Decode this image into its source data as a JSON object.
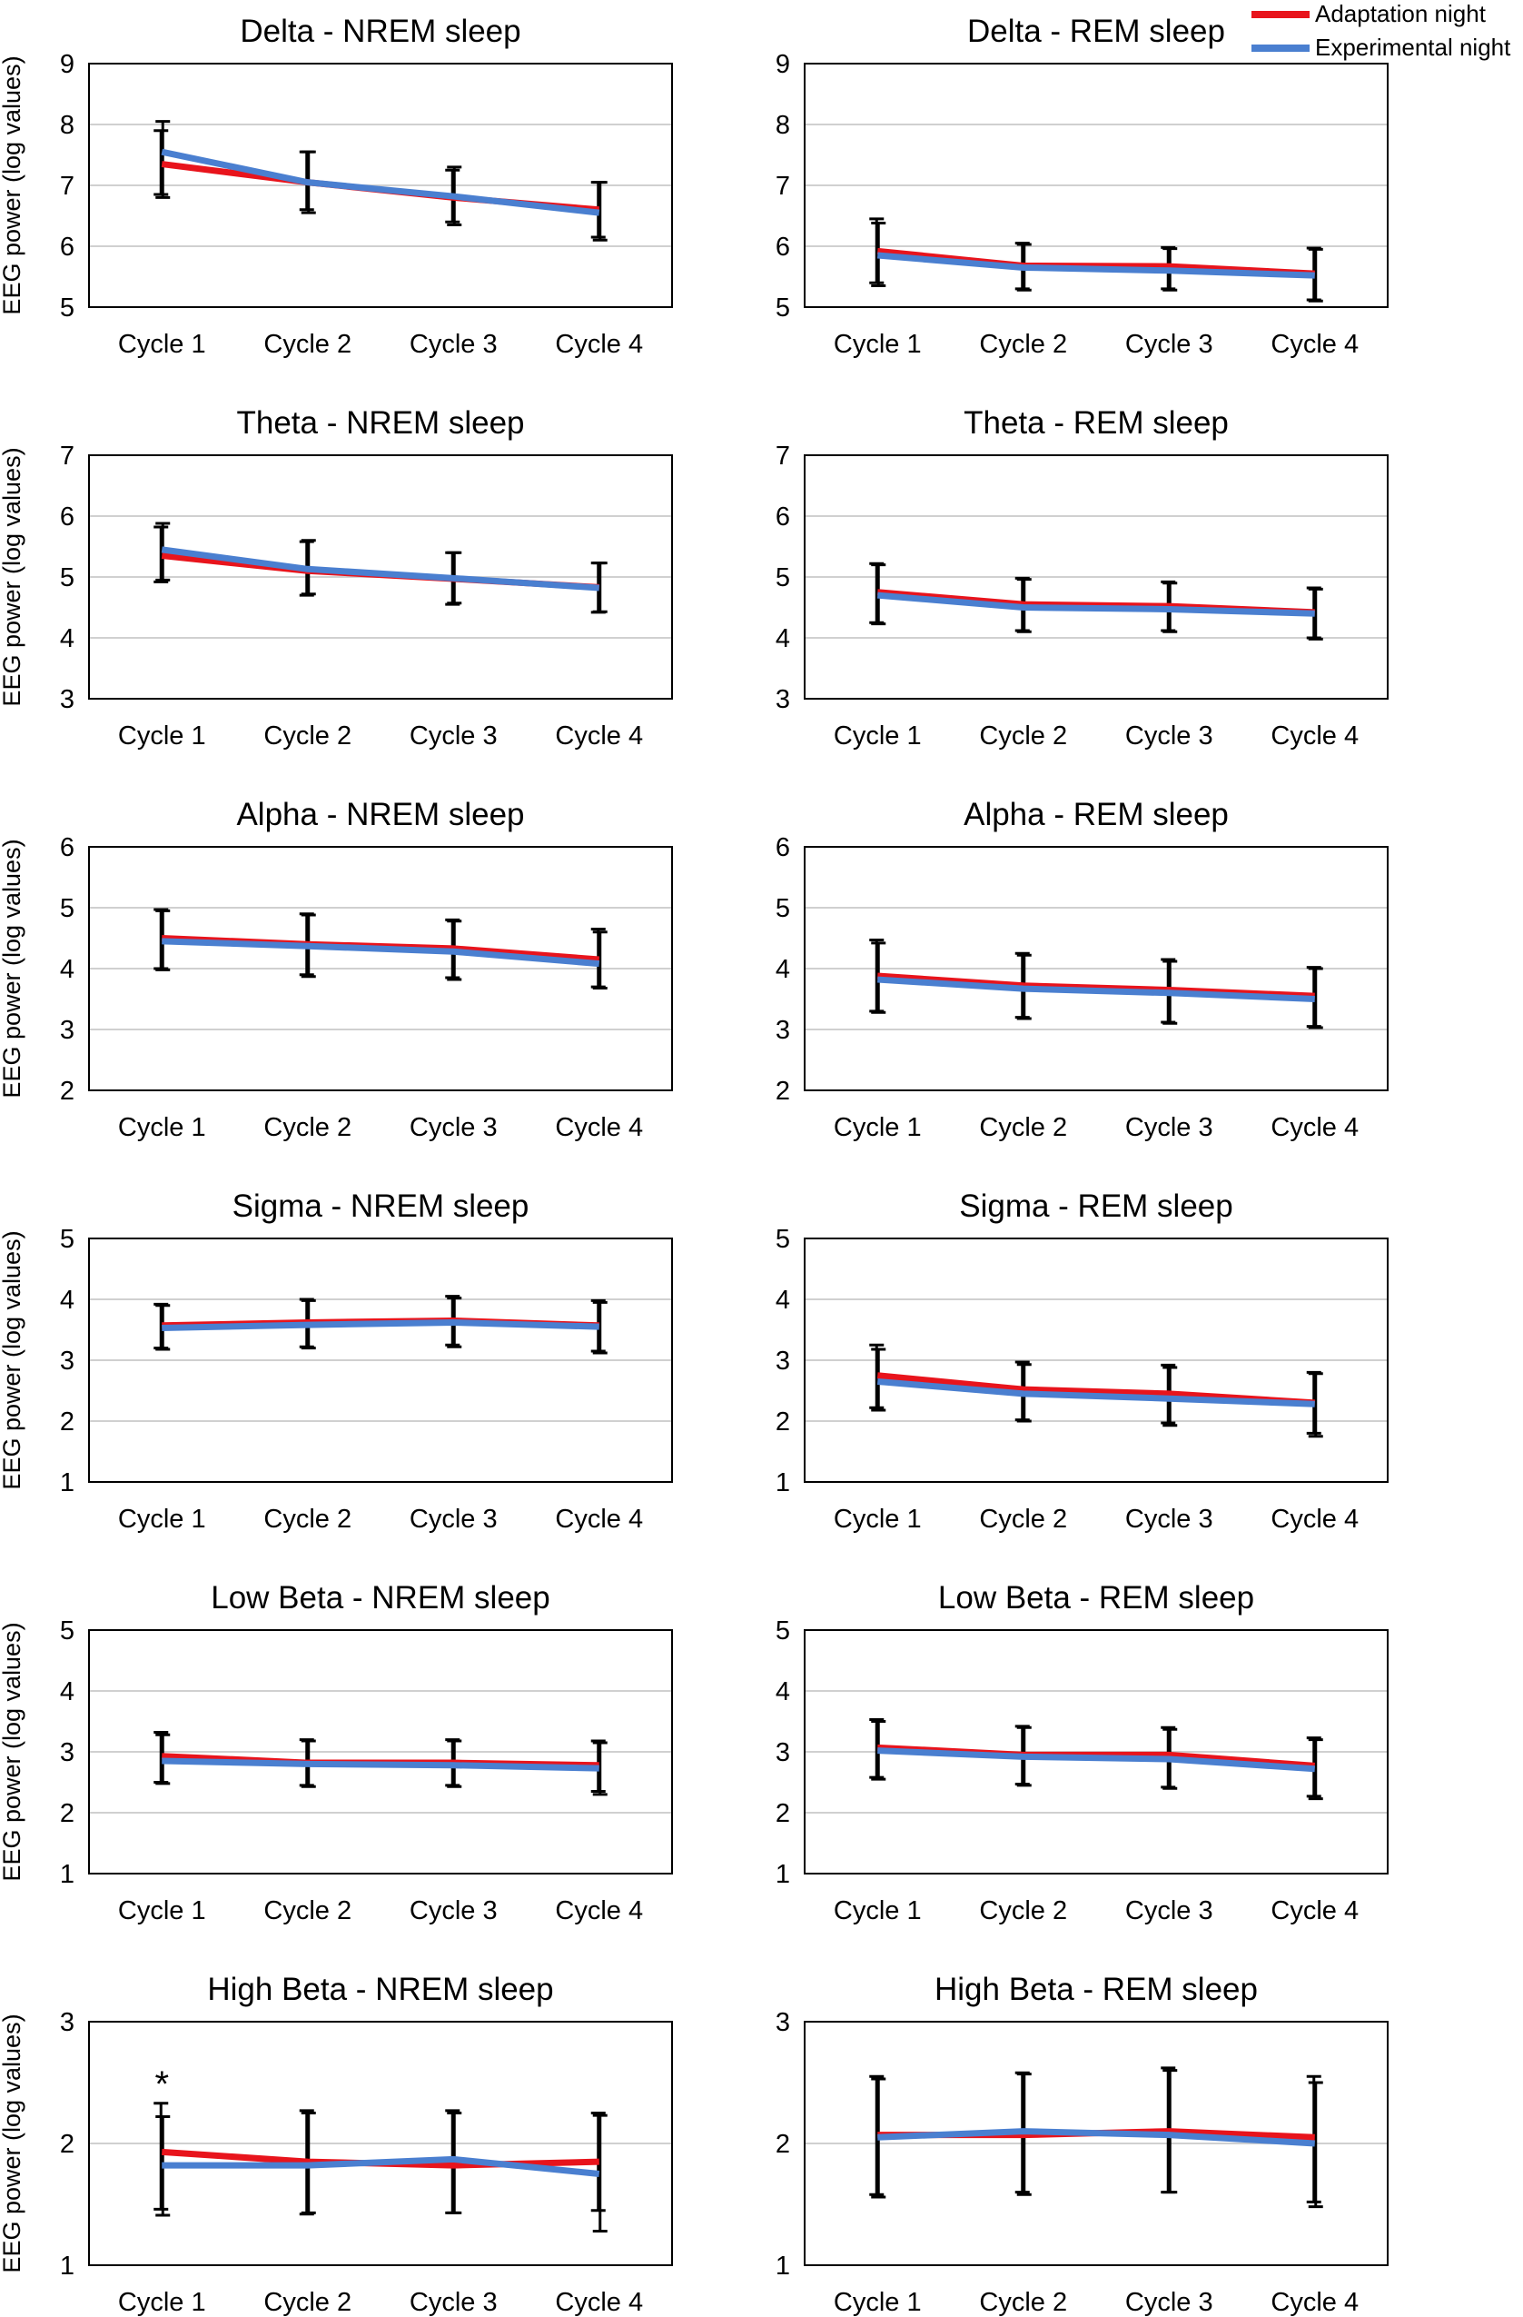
{
  "legend": [
    {
      "label": "Adaptation night",
      "color": "#e8141c"
    },
    {
      "label": "Experimental night",
      "color": "#4a7fd0"
    }
  ],
  "ylabel": "EEG power (log values)",
  "categories": [
    "Cycle 1",
    "Cycle 2",
    "Cycle 3",
    "Cycle 4"
  ],
  "chart_data": [
    {
      "type": "line",
      "title": "Delta - NREM sleep",
      "ylim": [
        5,
        9
      ],
      "yticks": [
        5,
        6,
        7,
        8,
        9
      ],
      "categories": [
        "Cycle 1",
        "Cycle 2",
        "Cycle 3",
        "Cycle 4"
      ],
      "series": [
        {
          "name": "Adaptation night",
          "values": [
            7.35,
            7.05,
            6.8,
            6.6
          ],
          "err_low": [
            6.85,
            6.6,
            6.4,
            6.15
          ],
          "err_high": [
            7.9,
            7.55,
            7.25,
            7.05
          ]
        },
        {
          "name": "Experimental night",
          "values": [
            7.55,
            7.05,
            6.82,
            6.55
          ],
          "err_low": [
            6.8,
            6.55,
            6.35,
            6.1
          ],
          "err_high": [
            8.05,
            7.55,
            7.3,
            7.05
          ]
        }
      ]
    },
    {
      "type": "line",
      "title": "Delta - REM sleep",
      "ylim": [
        5,
        9
      ],
      "yticks": [
        5,
        6,
        7,
        8,
        9
      ],
      "categories": [
        "Cycle 1",
        "Cycle 2",
        "Cycle 3",
        "Cycle 4"
      ],
      "series": [
        {
          "name": "Adaptation night",
          "values": [
            5.92,
            5.68,
            5.67,
            5.55
          ],
          "err_low": [
            5.4,
            5.3,
            5.3,
            5.12
          ],
          "err_high": [
            6.45,
            6.05,
            5.98,
            5.97
          ]
        },
        {
          "name": "Experimental night",
          "values": [
            5.85,
            5.65,
            5.6,
            5.52
          ],
          "err_low": [
            5.35,
            5.28,
            5.28,
            5.1
          ],
          "err_high": [
            6.38,
            6.03,
            5.96,
            5.95
          ]
        }
      ]
    },
    {
      "type": "line",
      "title": "Theta - NREM sleep",
      "ylim": [
        3,
        7
      ],
      "yticks": [
        3,
        4,
        5,
        6,
        7
      ],
      "categories": [
        "Cycle 1",
        "Cycle 2",
        "Cycle 3",
        "Cycle 4"
      ],
      "series": [
        {
          "name": "Adaptation night",
          "values": [
            5.35,
            5.1,
            4.97,
            4.83
          ],
          "err_low": [
            4.92,
            4.7,
            4.55,
            4.42
          ],
          "err_high": [
            5.82,
            5.58,
            5.4,
            5.23
          ]
        },
        {
          "name": "Experimental night",
          "values": [
            5.45,
            5.13,
            4.98,
            4.82
          ],
          "err_low": [
            4.95,
            4.72,
            4.57,
            4.43
          ],
          "err_high": [
            5.88,
            5.6,
            5.4,
            5.23
          ]
        }
      ]
    },
    {
      "type": "line",
      "title": "Theta - REM sleep",
      "ylim": [
        3,
        7
      ],
      "yticks": [
        3,
        4,
        5,
        6,
        7
      ],
      "categories": [
        "Cycle 1",
        "Cycle 2",
        "Cycle 3",
        "Cycle 4"
      ],
      "series": [
        {
          "name": "Adaptation night",
          "values": [
            4.75,
            4.55,
            4.52,
            4.42
          ],
          "err_low": [
            4.25,
            4.12,
            4.12,
            4.0
          ],
          "err_high": [
            5.22,
            4.98,
            4.92,
            4.82
          ]
        },
        {
          "name": "Experimental night",
          "values": [
            4.7,
            4.5,
            4.47,
            4.4
          ],
          "err_low": [
            4.23,
            4.1,
            4.1,
            3.98
          ],
          "err_high": [
            5.2,
            4.96,
            4.9,
            4.8
          ]
        }
      ]
    },
    {
      "type": "line",
      "title": "Alpha - NREM sleep",
      "ylim": [
        2,
        6
      ],
      "yticks": [
        2,
        3,
        4,
        5,
        6
      ],
      "categories": [
        "Cycle 1",
        "Cycle 2",
        "Cycle 3",
        "Cycle 4"
      ],
      "series": [
        {
          "name": "Adaptation night",
          "values": [
            4.5,
            4.4,
            4.33,
            4.15
          ],
          "err_low": [
            4.0,
            3.9,
            3.85,
            3.7
          ],
          "err_high": [
            4.97,
            4.9,
            4.8,
            4.65
          ]
        },
        {
          "name": "Experimental night",
          "values": [
            4.45,
            4.37,
            4.28,
            4.08
          ],
          "err_low": [
            3.98,
            3.87,
            3.82,
            3.68
          ],
          "err_high": [
            4.95,
            4.88,
            4.78,
            4.6
          ]
        }
      ]
    },
    {
      "type": "line",
      "title": "Alpha - REM sleep",
      "ylim": [
        2,
        6
      ],
      "yticks": [
        2,
        3,
        4,
        5,
        6
      ],
      "categories": [
        "Cycle 1",
        "Cycle 2",
        "Cycle 3",
        "Cycle 4"
      ],
      "series": [
        {
          "name": "Adaptation night",
          "values": [
            3.88,
            3.72,
            3.65,
            3.55
          ],
          "err_low": [
            3.3,
            3.2,
            3.12,
            3.05
          ],
          "err_high": [
            4.47,
            4.25,
            4.15,
            4.02
          ]
        },
        {
          "name": "Experimental night",
          "values": [
            3.82,
            3.67,
            3.6,
            3.5
          ],
          "err_low": [
            3.28,
            3.18,
            3.1,
            3.03
          ],
          "err_high": [
            4.42,
            4.22,
            4.12,
            4.0
          ]
        }
      ]
    },
    {
      "type": "line",
      "title": "Sigma - NREM sleep",
      "ylim": [
        1,
        5
      ],
      "yticks": [
        1,
        2,
        3,
        4,
        5
      ],
      "categories": [
        "Cycle 1",
        "Cycle 2",
        "Cycle 3",
        "Cycle 4"
      ],
      "series": [
        {
          "name": "Adaptation night",
          "values": [
            3.57,
            3.62,
            3.65,
            3.57
          ],
          "err_low": [
            3.2,
            3.22,
            3.25,
            3.15
          ],
          "err_high": [
            3.92,
            4.0,
            4.05,
            3.98
          ]
        },
        {
          "name": "Experimental night",
          "values": [
            3.53,
            3.58,
            3.62,
            3.55
          ],
          "err_low": [
            3.18,
            3.2,
            3.22,
            3.12
          ],
          "err_high": [
            3.9,
            3.98,
            4.02,
            3.95
          ]
        }
      ]
    },
    {
      "type": "line",
      "title": "Sigma - REM sleep",
      "ylim": [
        1,
        5
      ],
      "yticks": [
        1,
        2,
        3,
        4,
        5
      ],
      "categories": [
        "Cycle 1",
        "Cycle 2",
        "Cycle 3",
        "Cycle 4"
      ],
      "series": [
        {
          "name": "Adaptation night",
          "values": [
            2.75,
            2.52,
            2.45,
            2.3
          ],
          "err_low": [
            2.22,
            2.02,
            1.97,
            1.8
          ],
          "err_high": [
            3.25,
            2.97,
            2.92,
            2.8
          ]
        },
        {
          "name": "Experimental night",
          "values": [
            2.65,
            2.45,
            2.37,
            2.28
          ],
          "err_low": [
            2.18,
            2.0,
            1.93,
            1.75
          ],
          "err_high": [
            3.18,
            2.93,
            2.88,
            2.78
          ]
        }
      ]
    },
    {
      "type": "line",
      "title": "Low  Beta - NREM sleep",
      "ylim": [
        1,
        5
      ],
      "yticks": [
        1,
        2,
        3,
        4,
        5
      ],
      "categories": [
        "Cycle 1",
        "Cycle 2",
        "Cycle 3",
        "Cycle 4"
      ],
      "series": [
        {
          "name": "Adaptation night",
          "values": [
            2.93,
            2.82,
            2.82,
            2.78
          ],
          "err_low": [
            2.5,
            2.45,
            2.45,
            2.35
          ],
          "err_high": [
            3.32,
            3.2,
            3.2,
            3.18
          ]
        },
        {
          "name": "Experimental night",
          "values": [
            2.85,
            2.8,
            2.78,
            2.73
          ],
          "err_low": [
            2.48,
            2.43,
            2.43,
            2.3
          ],
          "err_high": [
            3.28,
            3.18,
            3.18,
            3.15
          ]
        }
      ]
    },
    {
      "type": "line",
      "title": "Low  Beta - REM sleep",
      "ylim": [
        1,
        5
      ],
      "yticks": [
        1,
        2,
        3,
        4,
        5
      ],
      "categories": [
        "Cycle 1",
        "Cycle 2",
        "Cycle 3",
        "Cycle 4"
      ],
      "series": [
        {
          "name": "Adaptation night",
          "values": [
            3.07,
            2.95,
            2.95,
            2.77
          ],
          "err_low": [
            2.58,
            2.47,
            2.42,
            2.27
          ],
          "err_high": [
            3.53,
            3.42,
            3.4,
            3.23
          ]
        },
        {
          "name": "Experimental night",
          "values": [
            3.02,
            2.92,
            2.88,
            2.72
          ],
          "err_low": [
            2.55,
            2.45,
            2.4,
            2.23
          ],
          "err_high": [
            3.5,
            3.4,
            3.37,
            3.2
          ]
        }
      ]
    },
    {
      "type": "line",
      "title": "High Beta - NREM sleep",
      "ylim": [
        1,
        3
      ],
      "yticks": [
        1,
        2,
        3
      ],
      "categories": [
        "Cycle 1",
        "Cycle 2",
        "Cycle 3",
        "Cycle 4"
      ],
      "annotation": "*",
      "series": [
        {
          "name": "Adaptation night",
          "values": [
            1.93,
            1.85,
            1.82,
            1.85
          ],
          "err_low": [
            1.46,
            1.42,
            1.43,
            1.45
          ],
          "err_high": [
            2.33,
            2.27,
            2.27,
            2.25
          ]
        },
        {
          "name": "Experimental night",
          "values": [
            1.82,
            1.82,
            1.87,
            1.75
          ],
          "err_low": [
            1.41,
            1.43,
            1.43,
            1.28
          ],
          "err_high": [
            2.22,
            2.25,
            2.25,
            2.23
          ]
        }
      ]
    },
    {
      "type": "line",
      "title": "High  Beta - REM sleep",
      "ylim": [
        1,
        3
      ],
      "yticks": [
        1,
        2,
        3
      ],
      "categories": [
        "Cycle 1",
        "Cycle 2",
        "Cycle 3",
        "Cycle 4"
      ],
      "series": [
        {
          "name": "Adaptation night",
          "values": [
            2.07,
            2.07,
            2.1,
            2.05
          ],
          "err_low": [
            1.58,
            1.6,
            1.6,
            1.52
          ],
          "err_high": [
            2.55,
            2.58,
            2.62,
            2.55
          ]
        },
        {
          "name": "Experimental night",
          "values": [
            2.05,
            2.1,
            2.07,
            2.0
          ],
          "err_low": [
            1.56,
            1.58,
            1.6,
            1.48
          ],
          "err_high": [
            2.53,
            2.57,
            2.6,
            2.5
          ]
        }
      ]
    }
  ]
}
